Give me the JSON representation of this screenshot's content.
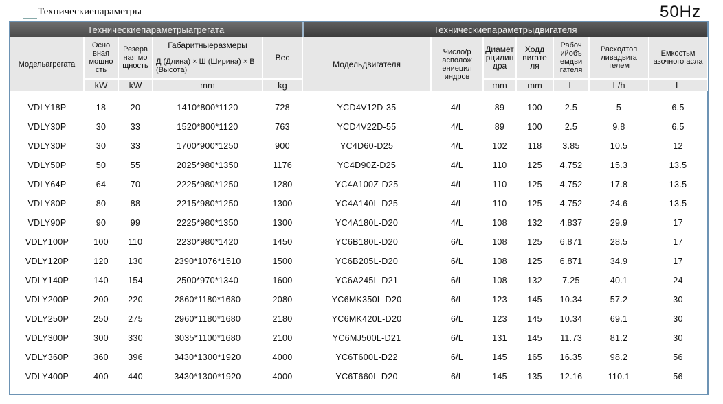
{
  "page": {
    "title": "Техническиепараметры",
    "frequency": "50Hz"
  },
  "table": {
    "group_headers": {
      "unit": "Техническиепараметрыагрегата",
      "engine": "Техническиепараметрыдвигателя"
    },
    "columns": {
      "model": "Модельагрегата",
      "prime_power": "Осно вная мощно сть",
      "standby_power": "Резерв ная мо щность",
      "dimensions_title": "Габаритныеразмеры",
      "dimensions_detail": "Д (Длина) × Ш (Ширина) × В (Высота)",
      "weight": "Вес",
      "engine_model": "Модельдвигателя",
      "cylinders": "Число/р асполож ениецил индров",
      "bore": "Диамет рцилин дра",
      "stroke": "Ходд вигате ля",
      "displacement": "Рабоч ийобъ емдви гателя",
      "fuel_consumption": "Расходтоп ливадвига телем",
      "oil_capacity": "Емкостьм азочного асла"
    },
    "units": {
      "prime_power": "kW",
      "standby_power": "kW",
      "dimensions": "mm",
      "weight": "kg",
      "bore": "mm",
      "stroke": "mm",
      "displacement": "L",
      "fuel_consumption": "L/h",
      "oil_capacity": "L"
    },
    "rows": [
      [
        "VDLY18P",
        "18",
        "20",
        "1410*800*1120",
        "728",
        "YCD4V12D-35",
        "4/L",
        "89",
        "100",
        "2.5",
        "5",
        "6.5"
      ],
      [
        "VDLY30P",
        "30",
        "33",
        "1520*800*1120",
        "763",
        "YCD4V22D-55",
        "4/L",
        "89",
        "100",
        "2.5",
        "9.8",
        "6.5"
      ],
      [
        "VDLY30P",
        "30",
        "33",
        "1700*900*1250",
        "900",
        "YC4D60-D25",
        "4/L",
        "102",
        "118",
        "3.85",
        "10.5",
        "12"
      ],
      [
        "VDLY50P",
        "50",
        "55",
        "2025*980*1350",
        "1176",
        "YC4D90Z-D25",
        "4/L",
        "110",
        "125",
        "4.752",
        "15.3",
        "13.5"
      ],
      [
        "VDLY64P",
        "64",
        "70",
        "2225*980*1250",
        "1280",
        "YC4A100Z-D25",
        "4/L",
        "110",
        "125",
        "4.752",
        "17.8",
        "13.5"
      ],
      [
        "VDLY80P",
        "80",
        "88",
        "2215*980*1250",
        "1300",
        "YC4A140L-D25",
        "4/L",
        "110",
        "125",
        "4.752",
        "24.6",
        "13.5"
      ],
      [
        "VDLY90P",
        "90",
        "99",
        "2225*980*1350",
        "1300",
        "YC4A180L-D20",
        "4/L",
        "108",
        "132",
        "4.837",
        "29.9",
        "17"
      ],
      [
        "VDLY100P",
        "100",
        "110",
        "2230*980*1420",
        "1450",
        "YC6B180L-D20",
        "6/L",
        "108",
        "125",
        "6.871",
        "28.5",
        "17"
      ],
      [
        "VDLY120P",
        "120",
        "130",
        "2390*1076*1510",
        "1500",
        "YC6B205L-D20",
        "6/L",
        "108",
        "125",
        "6.871",
        "34.9",
        "17"
      ],
      [
        "VDLY140P",
        "140",
        "154",
        "2500*970*1340",
        "1600",
        "YC6A245L-D21",
        "6/L",
        "108",
        "132",
        "7.25",
        "40.1",
        "24"
      ],
      [
        "VDLY200P",
        "200",
        "220",
        "2860*1180*1680",
        "2080",
        "YC6MK350L-D20",
        "6/L",
        "123",
        "145",
        "10.34",
        "57.2",
        "30"
      ],
      [
        "VDLY250P",
        "250",
        "275",
        "2960*1180*1680",
        "2180",
        "YC6MK420L-D20",
        "6/L",
        "123",
        "145",
        "10.34",
        "69.1",
        "30"
      ],
      [
        "VDLY300P",
        "300",
        "330",
        "3035*1100*1680",
        "2100",
        "YC6MJ500L-D21",
        "6/L",
        "131",
        "145",
        "11.73",
        "81.2",
        "30"
      ],
      [
        "VDLY360P",
        "360",
        "396",
        "3430*1300*1920",
        "4000",
        "YC6T600L-D22",
        "6/L",
        "145",
        "165",
        "16.35",
        "98.2",
        "56"
      ],
      [
        "VDLY400P",
        "400",
        "440",
        "3430*1300*1920",
        "4000",
        "YC6T660L-D20",
        "6/L",
        "145",
        "135",
        "12.16",
        "110.1",
        "56"
      ]
    ]
  }
}
